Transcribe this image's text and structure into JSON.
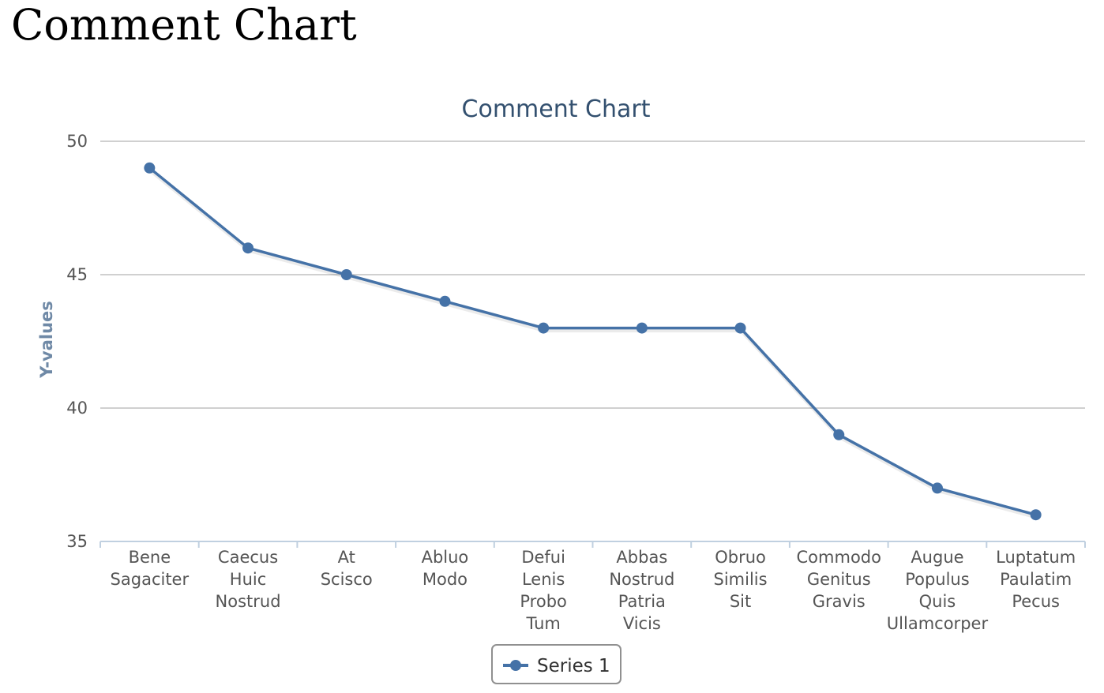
{
  "page": {
    "heading": "Comment Chart"
  },
  "chart_data": {
    "type": "line",
    "title": "Comment Chart",
    "ylabel": "Y-values",
    "xlabel": "",
    "ylim": [
      35,
      50
    ],
    "yticks": [
      35,
      40,
      45,
      50
    ],
    "grid": true,
    "legend_position": "bottom-center",
    "categories": [
      "Bene Sagaciter",
      "Caecus Huic Nostrud",
      "At Scisco",
      "Abluo Modo",
      "Defui Lenis Probo Tum",
      "Abbas Nostrud Patria Vicis",
      "Obruo Similis Sit",
      "Commodo Genitus Gravis",
      "Augue Populus Quis Ullamcorper",
      "Luptatum Paulatim Pecus"
    ],
    "series": [
      {
        "name": "Series 1",
        "color": "#4572a7",
        "values": [
          49,
          46,
          45,
          44,
          43,
          43,
          43,
          39,
          37,
          36
        ]
      }
    ]
  }
}
